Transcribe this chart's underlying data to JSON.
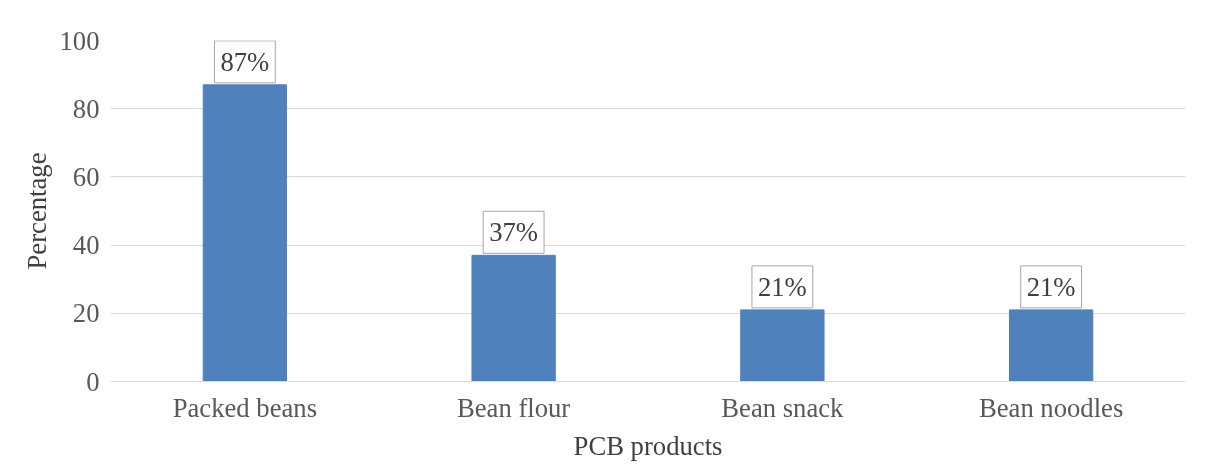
{
  "chart_data": {
    "type": "bar",
    "xlabel": "PCB products",
    "ylabel": "Percentage",
    "categories": [
      "Packed beans",
      "Bean flour",
      "Bean snack",
      "Bean noodles"
    ],
    "values": [
      87,
      37,
      21,
      21
    ],
    "color": "#4f81bd",
    "value_labels": [
      "87%",
      "37%",
      "21%",
      "21%"
    ],
    "ylim": [
      0,
      100
    ],
    "yticks": [
      0,
      20,
      40,
      60,
      80,
      100
    ],
    "grid": "y"
  }
}
